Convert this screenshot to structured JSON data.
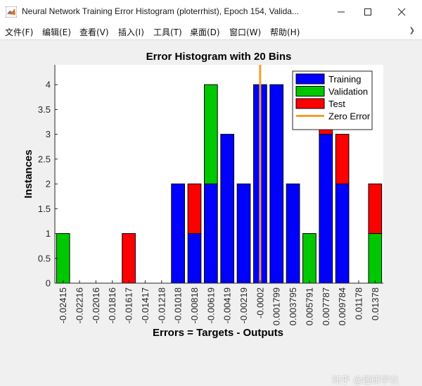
{
  "window": {
    "title": "Neural Network Training Error Histogram (ploterrhist), Epoch 154, Valida...",
    "app_icon": "matlab-icon",
    "controls": {
      "minimize": "minimize-icon",
      "maximize": "maximize-icon",
      "close": "close-icon"
    }
  },
  "menu": {
    "items": [
      {
        "label": "文件(F)"
      },
      {
        "label": "编辑(E)"
      },
      {
        "label": "查看(V)"
      },
      {
        "label": "插入(I)"
      },
      {
        "label": "工具(T)"
      },
      {
        "label": "桌面(D)"
      },
      {
        "label": "窗口(W)"
      },
      {
        "label": "帮助(H)"
      }
    ],
    "overflow_icon": "chevron-right-icon"
  },
  "watermark": "知乎 @趣研学社",
  "chart_data": {
    "type": "bar",
    "stacked": true,
    "title": "Error Histogram with 20 Bins",
    "xlabel": "Errors = Targets - Outputs",
    "ylabel": "Instances",
    "ylim": [
      0,
      4.4
    ],
    "yticks": [
      "0",
      "0.5",
      "1",
      "1.5",
      "2",
      "2.5",
      "3",
      "3.5",
      "4"
    ],
    "grid": false,
    "legend_position": "top-right",
    "categories": [
      "-0.02415",
      "-0.02216",
      "-0.02016",
      "-0.01816",
      "-0.01617",
      "-0.01417",
      "-0.01218",
      "-0.01018",
      "-0.00818",
      "-0.00619",
      "-0.00419",
      "-0.00219",
      "-0.0002",
      "0.001799",
      "0.003795",
      "0.005791",
      "0.007787",
      "0.009784",
      "0.01178",
      "0.01378"
    ],
    "series": [
      {
        "name": "Training",
        "color": "#0000ff",
        "values": [
          0,
          0,
          0,
          0,
          0,
          0,
          0,
          2,
          1,
          2,
          3,
          2,
          4,
          4,
          2,
          0,
          3,
          2,
          0,
          0
        ]
      },
      {
        "name": "Validation",
        "color": "#00c800",
        "values": [
          1,
          0,
          0,
          0,
          0,
          0,
          0,
          0,
          0,
          2,
          0,
          0,
          0,
          0,
          0,
          1,
          0,
          0,
          0,
          1
        ]
      },
      {
        "name": "Test",
        "color": "#ff0000",
        "values": [
          0,
          0,
          0,
          0,
          1,
          0,
          0,
          0,
          1,
          0,
          0,
          0,
          0,
          0,
          0,
          0,
          1,
          1,
          0,
          1
        ]
      }
    ],
    "zero_error": {
      "label": "Zero Error",
      "color": "#f0a030",
      "at_category": "-0.0002"
    }
  }
}
